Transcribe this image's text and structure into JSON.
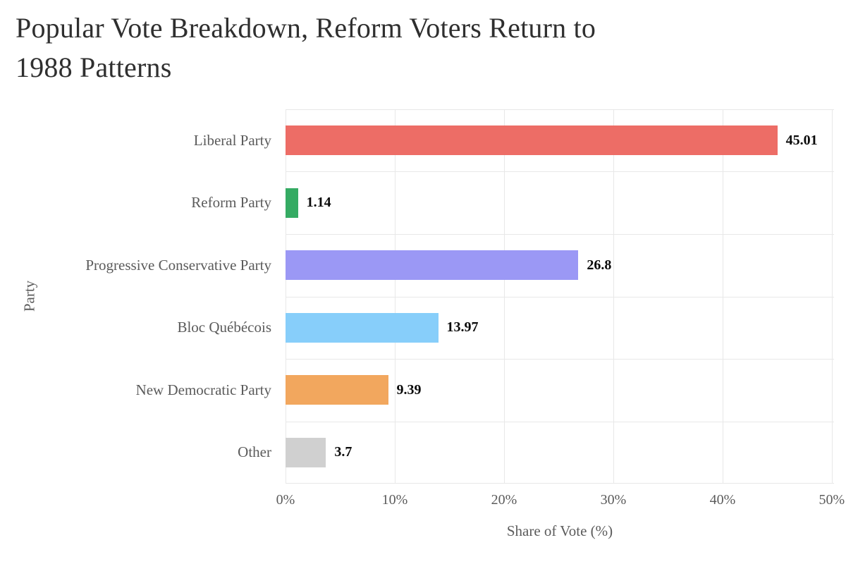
{
  "header": {
    "title_line1": "Popular Vote Breakdown, Reform Voters Return to",
    "title_line2": "1988 Patterns"
  },
  "axes": {
    "x_title": "Share of Vote (%)",
    "y_title": "Party"
  },
  "chart_data": {
    "type": "bar",
    "orientation": "horizontal",
    "title": "Popular Vote Breakdown, Reform Voters Return to 1988 Patterns",
    "xlabel": "Share of Vote (%)",
    "ylabel": "Party",
    "categories": [
      "Liberal Party",
      "Reform Party",
      "Progressive Conservative Party",
      "Bloc Québécois",
      "New Democratic Party",
      "Other"
    ],
    "values": [
      45.01,
      1.14,
      26.8,
      13.97,
      9.39,
      3.7
    ],
    "value_labels": [
      "45.01",
      "1.14",
      "26.8",
      "13.97",
      "9.39",
      "3.7"
    ],
    "bar_colors": [
      "#ed6d66",
      "#35ab63",
      "#9b98f5",
      "#87cefa",
      "#f2a75e",
      "#d0d0d0"
    ],
    "xlim": [
      0,
      50.2
    ],
    "xticks": [
      0,
      10,
      20,
      30,
      40,
      50
    ],
    "xtick_labels": [
      "0%",
      "10%",
      "20%",
      "30%",
      "40%",
      "50%"
    ],
    "grid": true,
    "legend": "none",
    "background": "#ffffff",
    "gridline_color": "#e8e8e8"
  }
}
